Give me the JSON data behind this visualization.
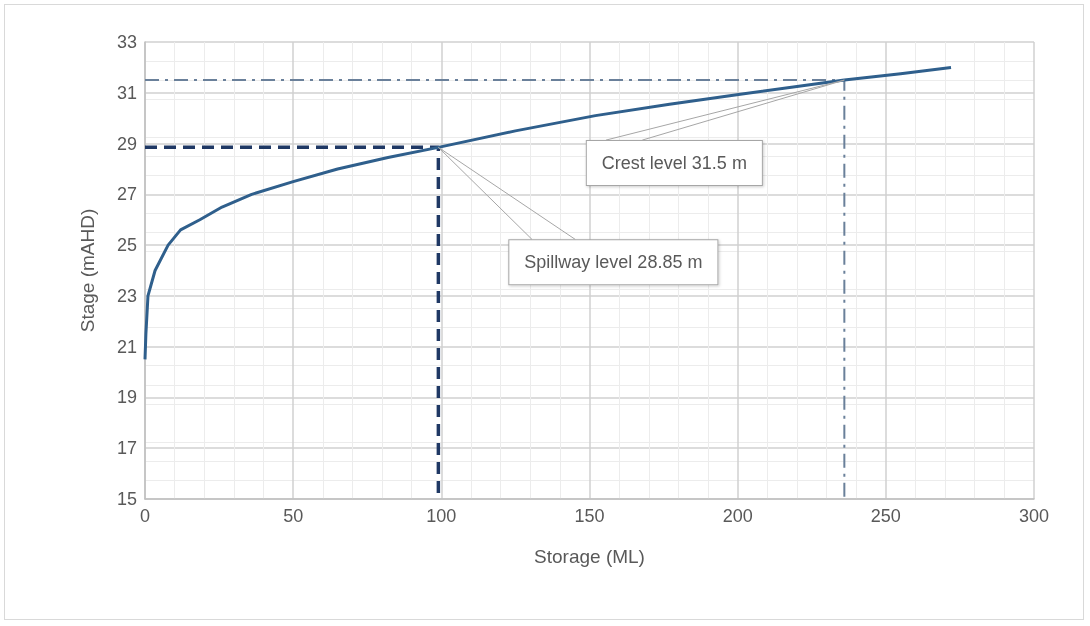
{
  "chart_data": {
    "type": "line",
    "xlabel": "Storage (ML)",
    "ylabel": "Stage (mAHD)",
    "series": [
      {
        "color": "#2f5f8c",
        "x": [
          0,
          0.3,
          1,
          3.4,
          7.8,
          12,
          18.5,
          26,
          36,
          50,
          65,
          82,
          99,
          125,
          152,
          177,
          201.5,
          220,
          236,
          255,
          272
        ],
        "values": [
          20.5,
          21.5,
          23,
          24,
          25,
          25.6,
          26,
          26.5,
          27,
          27.5,
          28,
          28.45,
          28.85,
          29.5,
          30.1,
          30.55,
          30.95,
          31.25,
          31.5,
          31.75,
          32
        ],
        "line_style": "solid"
      },
      {
        "color": "#1f3864",
        "x": [
          0,
          99,
          99
        ],
        "values": [
          28.85,
          28.85,
          15
        ],
        "line_style": "dashed"
      },
      {
        "color": "#6a809a",
        "x": [
          0,
          236,
          236
        ],
        "values": [
          31.5,
          31.5,
          15
        ],
        "line_style": "dashdot"
      }
    ],
    "annotations": [
      "Spillway level 28.85 m",
      "Crest level 31.5 m"
    ],
    "xlim": [
      0,
      300
    ],
    "xticks": [
      0,
      50,
      100,
      150,
      200,
      250,
      300
    ],
    "ylim": [
      15,
      33
    ],
    "yticks": [
      15,
      17,
      19,
      21,
      23,
      25,
      27,
      29,
      31,
      33
    ],
    "grid": true,
    "marker": "none"
  }
}
